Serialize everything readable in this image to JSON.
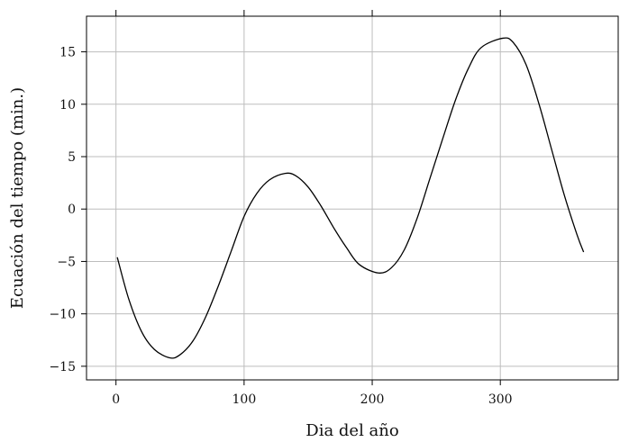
{
  "chart_data": {
    "type": "line",
    "xlabel": "Dia del año",
    "ylabel": "Ecuación del tiempo (min.)",
    "xlim": [
      -23,
      392
    ],
    "ylim": [
      -16.3,
      18.4
    ],
    "x_ticks": [
      0,
      100,
      200,
      300
    ],
    "y_ticks": [
      -15,
      -10,
      -5,
      0,
      5,
      10,
      15
    ],
    "y_tick_labels": [
      "−15",
      "−10",
      "−5",
      "0",
      "5",
      "10",
      "15"
    ],
    "grid": true,
    "series": [
      {
        "x": [
          1,
          10,
          20,
          30,
          42,
          50,
          60,
          70,
          80,
          90,
          100,
          110,
          120,
          132,
          140,
          150,
          160,
          170,
          180,
          190,
          205,
          215,
          225,
          235,
          245,
          255,
          265,
          275,
          285,
          302,
          310,
          320,
          330,
          340,
          350,
          360,
          365
        ],
        "y": [
          -4.6,
          -8.6,
          -11.7,
          -13.4,
          -14.2,
          -13.9,
          -12.6,
          -10.3,
          -7.3,
          -4.0,
          -0.7,
          1.5,
          2.8,
          3.4,
          3.2,
          2.1,
          0.3,
          -1.8,
          -3.7,
          -5.3,
          -6.1,
          -5.6,
          -3.9,
          -0.9,
          2.9,
          6.7,
          10.4,
          13.4,
          15.4,
          16.3,
          15.9,
          13.8,
          10.1,
          5.7,
          1.3,
          -2.5,
          -4.1
        ]
      }
    ]
  }
}
